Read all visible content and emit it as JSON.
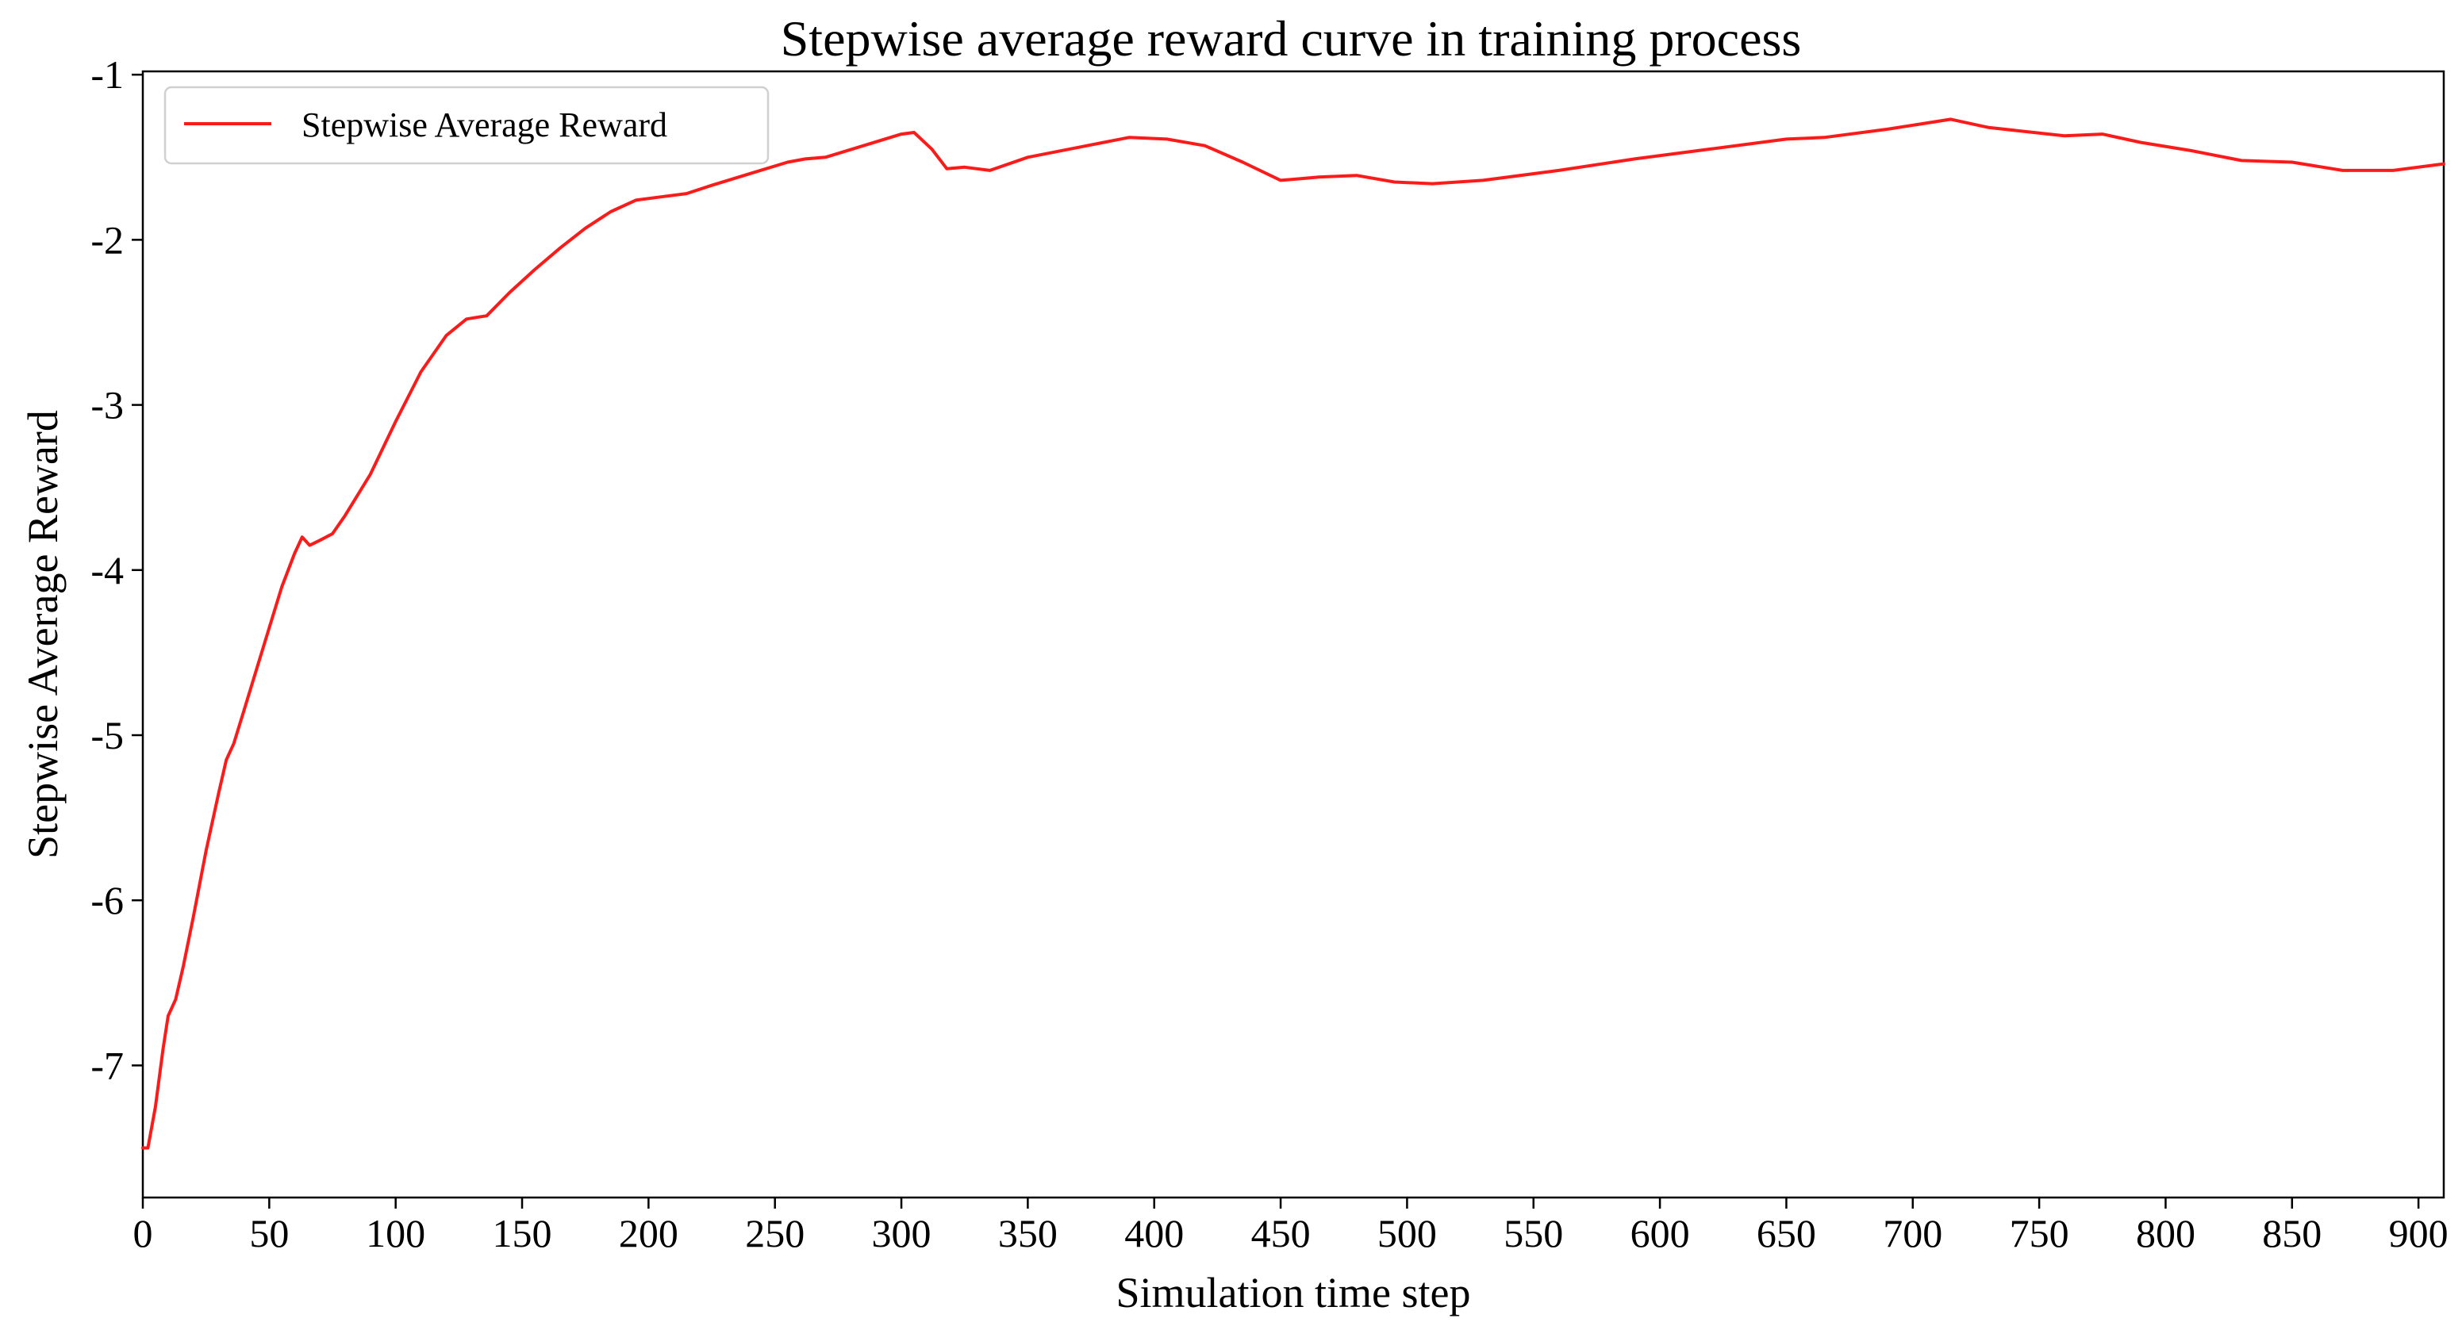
{
  "chart_data": {
    "type": "line",
    "title": "Stepwise average reward curve in training process",
    "xlabel": "Simulation time step",
    "ylabel": "Stepwise Average Reward",
    "xlim": [
      0,
      910
    ],
    "ylim": [
      -7.8,
      -0.98
    ],
    "xticks": [
      0,
      50,
      100,
      150,
      200,
      250,
      300,
      350,
      400,
      450,
      500,
      550,
      600,
      650,
      700,
      750,
      800,
      850,
      900
    ],
    "yticks": [
      -1,
      -2,
      -3,
      -4,
      -5,
      -6,
      -7
    ],
    "grid": false,
    "legend_position": "top-left",
    "line_color": "#ff1a1a",
    "series": [
      {
        "name": "Stepwise Average Reward",
        "color": "#ff1a1a",
        "x": [
          0,
          2,
          5,
          8,
          10,
          13,
          16,
          20,
          25,
          30,
          33,
          36,
          40,
          45,
          50,
          55,
          60,
          63,
          66,
          70,
          75,
          80,
          90,
          100,
          110,
          120,
          128,
          132,
          136,
          145,
          155,
          165,
          175,
          185,
          195,
          205,
          215,
          225,
          240,
          255,
          262,
          270,
          285,
          300,
          305,
          312,
          318,
          325,
          335,
          350,
          370,
          390,
          405,
          420,
          435,
          450,
          458,
          465,
          480,
          495,
          510,
          530,
          560,
          590,
          620,
          650,
          665,
          690,
          715,
          730,
          760,
          775,
          790,
          810,
          830,
          850,
          870,
          890,
          910
        ],
        "y": [
          -7.5,
          -7.5,
          -7.25,
          -6.9,
          -6.7,
          -6.6,
          -6.4,
          -6.1,
          -5.7,
          -5.35,
          -5.15,
          -5.05,
          -4.85,
          -4.6,
          -4.35,
          -4.1,
          -3.9,
          -3.8,
          -3.85,
          -3.82,
          -3.78,
          -3.67,
          -3.42,
          -3.1,
          -2.8,
          -2.58,
          -2.48,
          -2.47,
          -2.46,
          -2.32,
          -2.18,
          -2.05,
          -1.93,
          -1.83,
          -1.76,
          -1.74,
          -1.72,
          -1.67,
          -1.6,
          -1.53,
          -1.51,
          -1.5,
          -1.43,
          -1.36,
          -1.35,
          -1.45,
          -1.57,
          -1.56,
          -1.58,
          -1.5,
          -1.44,
          -1.38,
          -1.39,
          -1.43,
          -1.53,
          -1.64,
          -1.63,
          -1.62,
          -1.61,
          -1.65,
          -1.66,
          -1.64,
          -1.58,
          -1.51,
          -1.45,
          -1.39,
          -1.38,
          -1.33,
          -1.27,
          -1.32,
          -1.37,
          -1.36,
          -1.41,
          -1.46,
          -1.52,
          -1.53,
          -1.58,
          -1.58,
          -1.54
        ]
      }
    ]
  }
}
